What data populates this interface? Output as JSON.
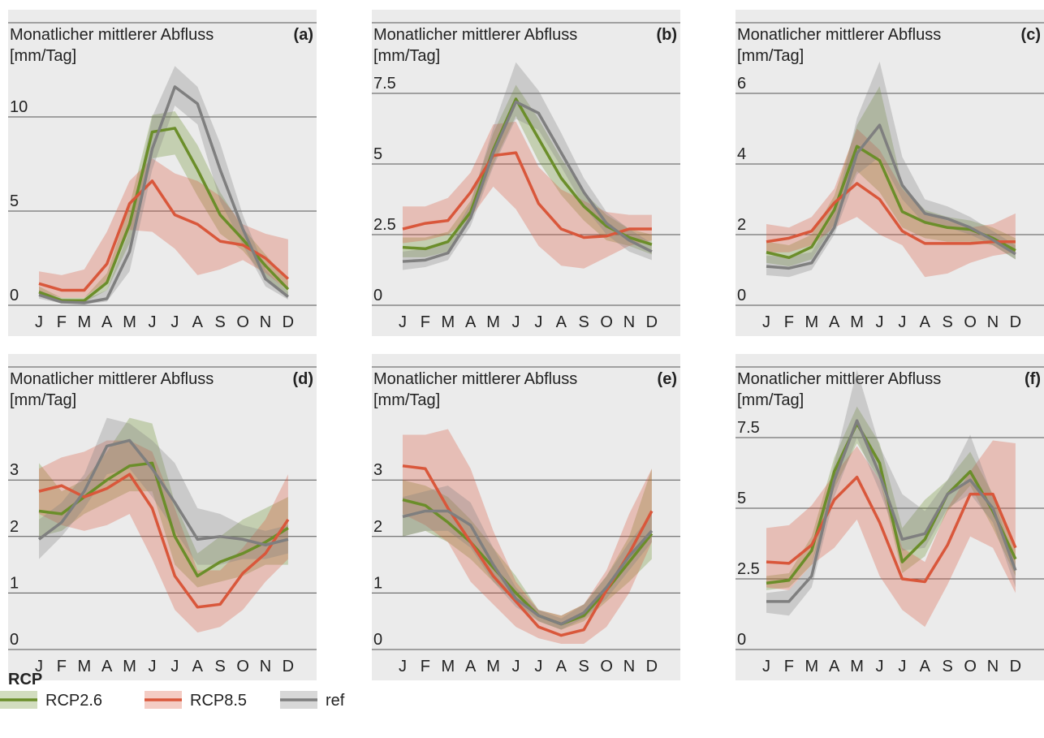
{
  "chart_data": [
    {
      "type": "line",
      "ylabel": "Monatlicher mittlerer Abfluss",
      "yunit": "[mm/Tag]",
      "label": "(a)",
      "categories": [
        "J",
        "F",
        "M",
        "A",
        "M",
        "J",
        "J",
        "A",
        "S",
        "O",
        "N",
        "D"
      ],
      "ylim": [
        0,
        15
      ],
      "yticks": [
        0,
        5,
        10
      ],
      "grid": true,
      "series": [
        {
          "name": "RCP2.6",
          "color": "#6b8e2a",
          "values": [
            0.7,
            0.25,
            0.25,
            1.2,
            4.3,
            9.2,
            9.4,
            7.2,
            4.8,
            3.5,
            2.1,
            0.85
          ],
          "lower": [
            0.5,
            0.15,
            0.15,
            0.8,
            3.3,
            7.8,
            8.0,
            5.8,
            3.8,
            2.9,
            1.5,
            0.5
          ],
          "upper": [
            1.0,
            0.4,
            0.4,
            1.7,
            5.3,
            10.1,
            10.3,
            8.5,
            6.0,
            4.1,
            2.7,
            1.3
          ]
        },
        {
          "name": "RCP8.5",
          "color": "#d9573b",
          "values": [
            1.15,
            0.8,
            0.8,
            2.2,
            5.4,
            6.6,
            4.8,
            4.3,
            3.4,
            3.2,
            2.5,
            1.4
          ],
          "lower": [
            0.7,
            0.4,
            0.4,
            1.3,
            4.0,
            3.9,
            3.0,
            1.6,
            1.9,
            2.4,
            1.7,
            0.8
          ],
          "upper": [
            1.8,
            1.6,
            1.9,
            3.9,
            6.6,
            7.8,
            7.0,
            6.6,
            5.8,
            4.3,
            3.8,
            3.5
          ]
        },
        {
          "name": "ref",
          "color": "#7f7f7f",
          "values": [
            0.55,
            0.17,
            0.13,
            0.35,
            2.85,
            8.3,
            11.6,
            10.7,
            7.2,
            4.05,
            1.4,
            0.45
          ],
          "lower": [
            0.35,
            0.1,
            0.05,
            0.2,
            1.8,
            7.2,
            10.6,
            9.6,
            5.5,
            3.2,
            1.0,
            0.3
          ],
          "upper": [
            0.8,
            0.35,
            0.3,
            0.8,
            4.0,
            10.0,
            12.7,
            11.6,
            8.6,
            4.8,
            1.9,
            0.7
          ]
        }
      ]
    },
    {
      "type": "line",
      "ylabel": "Monatlicher mittlerer Abfluss",
      "yunit": "[mm/Tag]",
      "label": "(b)",
      "categories": [
        "J",
        "F",
        "M",
        "A",
        "M",
        "J",
        "J",
        "A",
        "S",
        "O",
        "N",
        "D"
      ],
      "ylim": [
        0,
        10
      ],
      "yticks": [
        0,
        2.5,
        5,
        7.5
      ],
      "grid": true,
      "series": [
        {
          "color": "#6b8e2a",
          "values": [
            2.05,
            2.0,
            2.25,
            3.3,
            5.5,
            7.3,
            5.9,
            4.5,
            3.5,
            2.8,
            2.4,
            2.15
          ],
          "lower": [
            1.7,
            1.7,
            1.9,
            3.0,
            5.0,
            6.7,
            5.1,
            3.9,
            3.0,
            2.3,
            2.1,
            1.8
          ],
          "upper": [
            2.4,
            2.4,
            2.6,
            3.7,
            6.1,
            7.8,
            6.6,
            5.2,
            4.0,
            3.2,
            2.7,
            2.5
          ]
        },
        {
          "color": "#d9573b",
          "values": [
            2.7,
            2.9,
            3.0,
            4.0,
            5.3,
            5.4,
            3.6,
            2.7,
            2.4,
            2.45,
            2.7,
            2.7
          ],
          "lower": [
            2.2,
            2.3,
            2.5,
            3.1,
            4.2,
            3.4,
            2.1,
            1.4,
            1.3,
            1.7,
            2.1,
            2.3
          ],
          "upper": [
            3.5,
            3.5,
            3.8,
            4.7,
            6.4,
            6.5,
            4.9,
            4.1,
            3.7,
            3.3,
            3.2,
            3.2
          ]
        },
        {
          "color": "#7f7f7f",
          "values": [
            1.55,
            1.6,
            1.85,
            3.1,
            5.4,
            7.2,
            6.8,
            5.4,
            4.0,
            2.9,
            2.3,
            1.9
          ],
          "lower": [
            1.25,
            1.35,
            1.6,
            2.8,
            4.9,
            6.6,
            6.2,
            4.9,
            3.5,
            2.5,
            1.9,
            1.6
          ],
          "upper": [
            1.9,
            2.0,
            2.2,
            3.6,
            6.3,
            8.6,
            7.6,
            6.1,
            4.5,
            3.3,
            2.7,
            2.2
          ]
        }
      ]
    },
    {
      "type": "line",
      "ylabel": "Monatlicher mittlerer Abfluss",
      "yunit": "[mm/Tag]",
      "label": "(c)",
      "categories": [
        "J",
        "F",
        "M",
        "A",
        "M",
        "J",
        "J",
        "A",
        "S",
        "O",
        "N",
        "D"
      ],
      "ylim": [
        0,
        8
      ],
      "yticks": [
        0,
        2,
        4,
        6
      ],
      "grid": true,
      "series": [
        {
          "color": "#6b8e2a",
          "values": [
            1.5,
            1.35,
            1.65,
            2.7,
            4.5,
            4.1,
            2.65,
            2.35,
            2.2,
            2.15,
            1.9,
            1.55
          ],
          "lower": [
            1.2,
            1.1,
            1.3,
            2.3,
            3.8,
            3.2,
            2.2,
            1.9,
            1.8,
            1.8,
            1.7,
            1.3
          ],
          "upper": [
            1.8,
            1.7,
            2.0,
            3.1,
            5.1,
            6.2,
            3.4,
            2.7,
            2.5,
            2.4,
            2.2,
            1.9
          ]
        },
        {
          "color": "#d9573b",
          "values": [
            1.8,
            1.9,
            2.1,
            2.9,
            3.45,
            3.0,
            2.1,
            1.75,
            1.75,
            1.75,
            1.8,
            1.8
          ],
          "lower": [
            1.5,
            1.5,
            1.7,
            2.2,
            2.5,
            2.0,
            1.7,
            0.8,
            0.9,
            1.2,
            1.4,
            1.5
          ],
          "upper": [
            2.3,
            2.2,
            2.5,
            3.3,
            5.0,
            4.4,
            3.3,
            2.6,
            2.4,
            2.2,
            2.3,
            2.6
          ]
        },
        {
          "color": "#7f7f7f",
          "values": [
            1.1,
            1.05,
            1.2,
            2.2,
            4.3,
            5.1,
            3.4,
            2.6,
            2.45,
            2.2,
            1.85,
            1.45
          ],
          "lower": [
            0.85,
            0.8,
            1.0,
            2.0,
            3.7,
            4.2,
            3.0,
            2.3,
            2.2,
            2.0,
            1.7,
            1.3
          ],
          "upper": [
            1.4,
            1.4,
            1.5,
            2.6,
            5.3,
            6.9,
            4.2,
            3.0,
            2.8,
            2.5,
            2.1,
            1.7
          ]
        }
      ]
    },
    {
      "type": "line",
      "ylabel": "Monatlicher mittlerer Abfluss",
      "yunit": "[mm/Tag]",
      "label": "(d)",
      "categories": [
        "J",
        "F",
        "M",
        "A",
        "M",
        "J",
        "J",
        "A",
        "S",
        "O",
        "N",
        "D"
      ],
      "ylim": [
        0,
        5
      ],
      "yticks": [
        0,
        1,
        2,
        3
      ],
      "grid": true,
      "series": [
        {
          "color": "#6b8e2a",
          "values": [
            2.45,
            2.4,
            2.7,
            3.0,
            3.25,
            3.3,
            2.0,
            1.3,
            1.55,
            1.7,
            1.9,
            2.15
          ],
          "lower": [
            2.0,
            2.1,
            2.4,
            2.6,
            2.8,
            2.8,
            1.5,
            1.1,
            1.2,
            1.3,
            1.5,
            1.5
          ],
          "upper": [
            3.3,
            2.8,
            3.0,
            3.5,
            4.1,
            4.0,
            2.6,
            1.7,
            2.0,
            2.3,
            2.5,
            2.7
          ]
        },
        {
          "color": "#d9573b",
          "values": [
            2.8,
            2.9,
            2.7,
            2.85,
            3.1,
            2.5,
            1.3,
            0.75,
            0.8,
            1.35,
            1.7,
            2.3
          ],
          "lower": [
            2.4,
            2.2,
            2.1,
            2.2,
            2.4,
            1.6,
            0.7,
            0.3,
            0.4,
            0.7,
            1.2,
            1.6
          ],
          "upper": [
            3.2,
            3.4,
            3.5,
            3.7,
            3.7,
            3.5,
            2.5,
            1.4,
            1.4,
            1.8,
            2.3,
            3.1
          ]
        },
        {
          "color": "#7f7f7f",
          "values": [
            1.95,
            2.25,
            2.8,
            3.6,
            3.7,
            3.2,
            2.6,
            1.95,
            2.0,
            1.95,
            1.85,
            1.95
          ],
          "lower": [
            1.6,
            2.0,
            2.5,
            3.1,
            3.2,
            2.7,
            2.1,
            1.5,
            1.5,
            1.6,
            1.6,
            1.7
          ],
          "upper": [
            2.3,
            2.6,
            3.1,
            4.1,
            4.0,
            3.7,
            3.3,
            2.5,
            2.4,
            2.2,
            2.1,
            2.2
          ]
        }
      ]
    },
    {
      "type": "line",
      "ylabel": "Monatlicher mittlerer Abfluss",
      "yunit": "[mm/Tag]",
      "label": "(e)",
      "categories": [
        "J",
        "F",
        "M",
        "A",
        "M",
        "J",
        "J",
        "A",
        "S",
        "O",
        "N",
        "D"
      ],
      "ylim": [
        0,
        5
      ],
      "yticks": [
        0,
        1,
        2,
        3
      ],
      "grid": true,
      "series": [
        {
          "color": "#6b8e2a",
          "values": [
            2.65,
            2.55,
            2.25,
            1.9,
            1.45,
            1.0,
            0.6,
            0.45,
            0.6,
            1.05,
            1.55,
            2.05
          ],
          "lower": [
            2.0,
            2.1,
            1.9,
            1.6,
            1.2,
            0.85,
            0.5,
            0.35,
            0.5,
            0.85,
            1.2,
            1.6
          ],
          "upper": [
            3.0,
            2.9,
            2.7,
            2.3,
            1.8,
            1.3,
            0.7,
            0.6,
            0.8,
            1.3,
            2.0,
            3.2
          ]
        },
        {
          "color": "#d9573b",
          "values": [
            3.25,
            3.2,
            2.5,
            1.9,
            1.3,
            0.85,
            0.4,
            0.25,
            0.35,
            1.05,
            1.7,
            2.45
          ],
          "lower": [
            2.4,
            2.2,
            1.9,
            1.2,
            0.8,
            0.4,
            0.2,
            0.1,
            0.1,
            0.4,
            1.0,
            1.9
          ],
          "upper": [
            3.8,
            3.8,
            3.9,
            3.2,
            2.1,
            1.2,
            0.7,
            0.6,
            0.8,
            1.4,
            2.4,
            3.2
          ]
        },
        {
          "color": "#7f7f7f",
          "values": [
            2.35,
            2.45,
            2.45,
            2.2,
            1.5,
            0.9,
            0.6,
            0.45,
            0.65,
            1.1,
            1.65,
            2.1
          ],
          "lower": [
            2.0,
            2.1,
            2.1,
            1.8,
            1.2,
            0.75,
            0.5,
            0.35,
            0.55,
            0.9,
            1.4,
            1.9
          ],
          "upper": [
            2.7,
            2.8,
            2.9,
            2.6,
            1.8,
            1.1,
            0.7,
            0.55,
            0.8,
            1.3,
            1.9,
            2.4
          ]
        }
      ]
    },
    {
      "type": "line",
      "ylabel": "Monatlicher mittlerer Abfluss",
      "yunit": "[mm/Tag]",
      "label": "(f)",
      "categories": [
        "J",
        "F",
        "M",
        "A",
        "M",
        "J",
        "J",
        "A",
        "S",
        "O",
        "N",
        "D"
      ],
      "ylim": [
        0,
        10
      ],
      "yticks": [
        0,
        2.5,
        5,
        7.5
      ],
      "grid": true,
      "series": [
        {
          "color": "#6b8e2a",
          "values": [
            2.35,
            2.45,
            3.5,
            6.3,
            8.0,
            6.6,
            3.1,
            3.9,
            5.5,
            6.3,
            4.9,
            3.2
          ],
          "lower": [
            2.1,
            2.2,
            3.0,
            5.7,
            7.3,
            6.0,
            2.7,
            3.3,
            4.9,
            5.8,
            4.3,
            2.6
          ],
          "upper": [
            2.6,
            2.7,
            4.0,
            6.8,
            8.6,
            7.3,
            4.3,
            5.3,
            6.0,
            7.0,
            5.5,
            3.6
          ]
        },
        {
          "color": "#d9573b",
          "values": [
            3.1,
            3.05,
            3.7,
            5.3,
            6.1,
            4.5,
            2.5,
            2.4,
            3.7,
            5.5,
            5.5,
            3.6
          ],
          "lower": [
            2.2,
            2.1,
            3.0,
            3.6,
            4.6,
            2.6,
            1.4,
            0.8,
            2.3,
            4.0,
            3.6,
            2.0
          ],
          "upper": [
            4.3,
            4.4,
            5.1,
            6.2,
            7.2,
            6.0,
            3.6,
            3.1,
            5.0,
            6.3,
            7.4,
            7.3
          ]
        },
        {
          "color": "#7f7f7f",
          "values": [
            1.7,
            1.7,
            2.6,
            6.0,
            8.1,
            6.2,
            3.9,
            4.1,
            5.5,
            6.0,
            5.0,
            2.8
          ],
          "lower": [
            1.3,
            1.2,
            2.2,
            5.4,
            7.5,
            5.6,
            3.5,
            3.6,
            5.0,
            5.5,
            4.5,
            2.2
          ],
          "upper": [
            2.0,
            2.1,
            3.0,
            6.6,
            9.9,
            7.2,
            5.5,
            4.9,
            6.0,
            7.6,
            5.4,
            3.1
          ]
        }
      ]
    }
  ],
  "legend": {
    "title": "RCP"
  }
}
